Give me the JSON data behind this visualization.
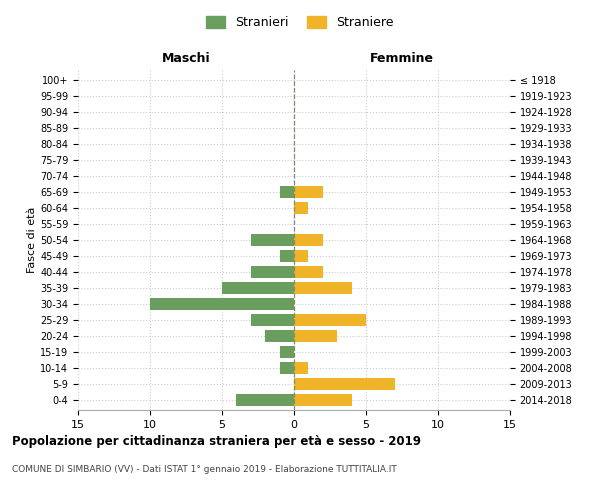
{
  "age_groups": [
    "0-4",
    "5-9",
    "10-14",
    "15-19",
    "20-24",
    "25-29",
    "30-34",
    "35-39",
    "40-44",
    "45-49",
    "50-54",
    "55-59",
    "60-64",
    "65-69",
    "70-74",
    "75-79",
    "80-84",
    "85-89",
    "90-94",
    "95-99",
    "100+"
  ],
  "birth_years": [
    "2014-2018",
    "2009-2013",
    "2004-2008",
    "1999-2003",
    "1994-1998",
    "1989-1993",
    "1984-1988",
    "1979-1983",
    "1974-1978",
    "1969-1973",
    "1964-1968",
    "1959-1963",
    "1954-1958",
    "1949-1953",
    "1944-1948",
    "1939-1943",
    "1934-1938",
    "1929-1933",
    "1924-1928",
    "1919-1923",
    "≤ 1918"
  ],
  "maschi": [
    4,
    0,
    1,
    1,
    2,
    3,
    10,
    5,
    3,
    1,
    3,
    0,
    0,
    1,
    0,
    0,
    0,
    0,
    0,
    0,
    0
  ],
  "femmine": [
    4,
    7,
    1,
    0,
    3,
    5,
    0,
    4,
    2,
    1,
    2,
    0,
    1,
    2,
    0,
    0,
    0,
    0,
    0,
    0,
    0
  ],
  "color_maschi": "#6a9e5e",
  "color_femmine": "#f0b429",
  "title": "Popolazione per cittadinanza straniera per età e sesso - 2019",
  "subtitle": "COMUNE DI SIMBARIO (VV) - Dati ISTAT 1° gennaio 2019 - Elaborazione TUTTITALIA.IT",
  "xlabel_left": "Maschi",
  "xlabel_right": "Femmine",
  "ylabel_left": "Fasce di età",
  "legend_maschi": "Stranieri",
  "legend_femmine": "Straniere",
  "xlim": 15,
  "background_color": "#ffffff",
  "grid_color": "#cccccc",
  "dashed_line_color": "#aaaaaa"
}
